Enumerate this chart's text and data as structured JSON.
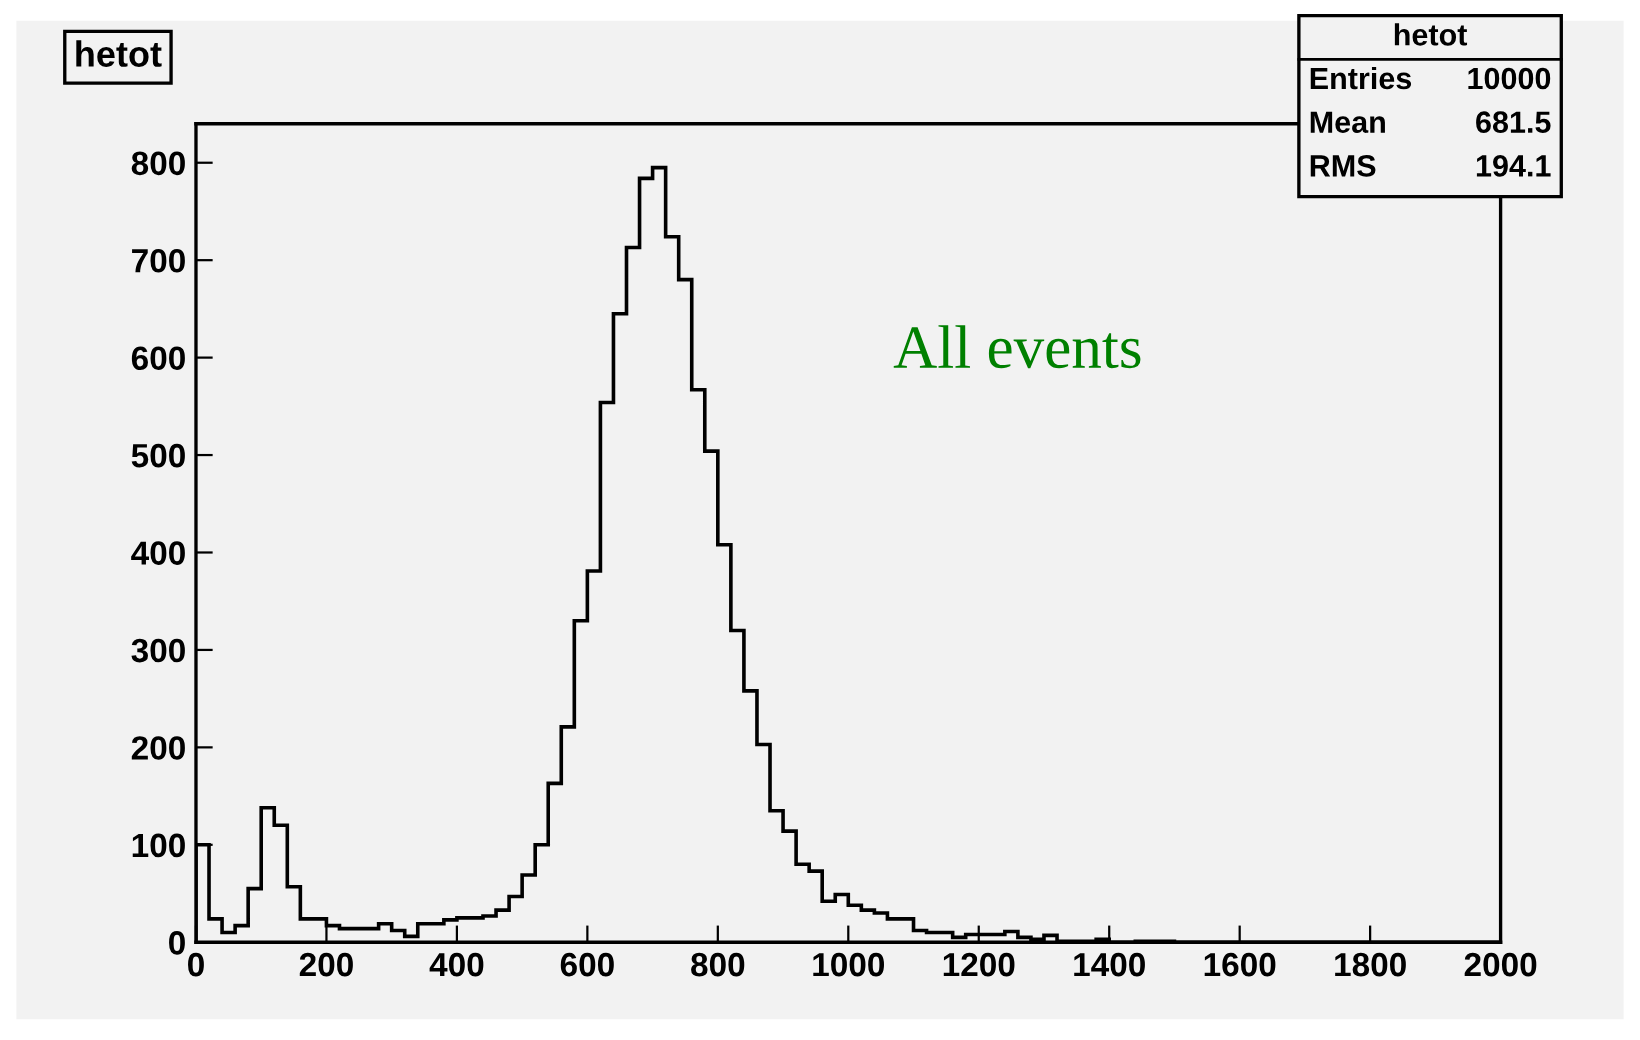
{
  "chart_data": {
    "type": "histogram",
    "title": "hetot",
    "bins": [
      0,
      20,
      40,
      60,
      80,
      100,
      120,
      140,
      160,
      180,
      200,
      220,
      240,
      260,
      280,
      300,
      320,
      340,
      360,
      380,
      400,
      420,
      440,
      460,
      480,
      500,
      520,
      540,
      560,
      580,
      600,
      620,
      640,
      660,
      680,
      700,
      720,
      740,
      760,
      780,
      800,
      820,
      840,
      860,
      880,
      900,
      920,
      940,
      960,
      980,
      1000,
      1020,
      1040,
      1060,
      1080,
      1100,
      1120,
      1140,
      1160,
      1180,
      1200,
      1220,
      1240,
      1260,
      1280,
      1300,
      1320,
      1340,
      1360,
      1380,
      1400,
      1420,
      1440,
      1460,
      1480,
      1500,
      1520,
      1540,
      1560,
      1580,
      1600,
      1620,
      1640,
      1660,
      1680,
      1700,
      1720,
      1740,
      1760,
      1780,
      1800,
      1820,
      1840,
      1860,
      1880,
      1900,
      1920,
      1940,
      1960,
      1980,
      2000
    ],
    "values": [
      100,
      24,
      10,
      17,
      55,
      138,
      120,
      57,
      24,
      24,
      17,
      14,
      14,
      14,
      19,
      12,
      6,
      19,
      19,
      23,
      25,
      25,
      27,
      33,
      47,
      69,
      100,
      163,
      221,
      330,
      381,
      554,
      645,
      713,
      784,
      795,
      724,
      680,
      567,
      504,
      408,
      320,
      258,
      203,
      135,
      114,
      80,
      73,
      42,
      49,
      38,
      33,
      30,
      24,
      24,
      12,
      10,
      10,
      5,
      8,
      8,
      8,
      11,
      5,
      3,
      7,
      1,
      1,
      1,
      3,
      0,
      0,
      1,
      1,
      1,
      0,
      0,
      0,
      0,
      0,
      0,
      0,
      0,
      0,
      0,
      0,
      0,
      0,
      0,
      0,
      0,
      0,
      0,
      0,
      0,
      0,
      0,
      0,
      0,
      0
    ],
    "color": "#000000",
    "xlim": [
      0,
      2000
    ],
    "xticks": [
      0,
      200,
      400,
      600,
      800,
      1000,
      1200,
      1400,
      1600,
      1800,
      2000
    ],
    "ylim": [
      0,
      840
    ],
    "yticks": [
      0,
      100,
      200,
      300,
      400,
      500,
      600,
      700,
      800
    ],
    "grid": false,
    "legend": false,
    "annotations": [
      "All events",
      "hetot",
      "Entries",
      "10000",
      "Mean",
      "681.5",
      "RMS",
      "194.1"
    ]
  }
}
